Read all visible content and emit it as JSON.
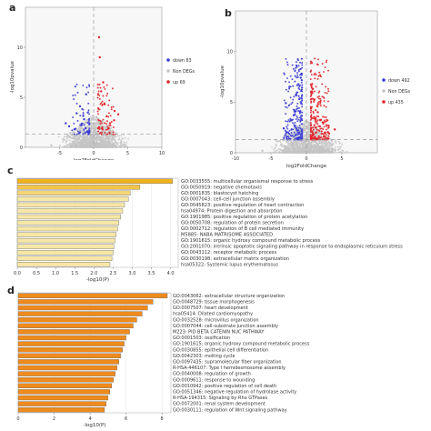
{
  "panel_labels": [
    "a",
    "b",
    "c",
    "d"
  ],
  "colors": {
    "down": "#3b3bd6",
    "non": "#c4c4c4",
    "up": "#e0242a",
    "threshold": "#999999",
    "bar_c_light": "#f6e7a6",
    "bar_c_dark": "#f2b21b",
    "bar_d": "#ef8a1c",
    "bar_outline": "#6b6b6b",
    "panel_bg": "#f7f7f7"
  },
  "chart_data": [
    {
      "id": "a",
      "type": "scatter",
      "title": "",
      "xlabel": "log2FoldChange",
      "ylabel": "-log10pvalue",
      "xlim": [
        -10,
        10
      ],
      "ylim": [
        0,
        14
      ],
      "xticks": [
        -5,
        0,
        5,
        10
      ],
      "yticks": [
        0,
        5,
        10
      ],
      "threshold_y": 1.3,
      "fc_cutoff": 0.6,
      "legend_position": "right",
      "series": [
        {
          "name": "down 83",
          "color": "#3b3bd6",
          "x": [
            -2.5,
            -1.8,
            -1.2,
            -3.6,
            -2.0,
            -1.4,
            -0.9,
            -2.8,
            -1.1,
            -4.1
          ],
          "y": [
            3.4,
            2.2,
            1.9,
            2.1,
            4.1,
            2.8,
            1.6,
            1.8,
            5.3,
            2.4
          ]
        },
        {
          "name": "Non DEGs",
          "color": "#c4c4c4",
          "x": [
            -0.5,
            0.3,
            -1.5,
            1.2,
            -3.0,
            2.8,
            -0.2,
            0.6,
            4.5,
            -6.2
          ],
          "y": [
            0.5,
            0.9,
            0.3,
            0.7,
            0.4,
            0.2,
            1.1,
            0.4,
            0.3,
            0.2
          ]
        },
        {
          "name": "up 69",
          "color": "#e0242a",
          "x": [
            0.8,
            1.3,
            1.9,
            2.4,
            1.1,
            3.0,
            0.9,
            1.6,
            2.2,
            3.6,
            0.8,
            1.4
          ],
          "y": [
            2.0,
            1.8,
            3.1,
            2.4,
            5.6,
            2.7,
            9.0,
            4.3,
            1.9,
            3.3,
            11.0,
            6.5
          ]
        }
      ]
    },
    {
      "id": "b",
      "type": "scatter",
      "title": "",
      "xlabel": "log2FoldChange",
      "ylabel": "-log10pvalue",
      "xlim": [
        -10,
        10
      ],
      "ylim": [
        0,
        14
      ],
      "xticks": [
        -10,
        -5,
        0,
        5
      ],
      "yticks": [
        0,
        5,
        10
      ],
      "threshold_y": 1.3,
      "fc_cutoff": 0.6,
      "legend_position": "right",
      "series": [
        {
          "name": "down 492",
          "color": "#3b3bd6",
          "x": [
            -2.1,
            -1.5,
            -1.0,
            -3.2,
            -2.4,
            -1.2,
            -0.8,
            -1.8,
            -2.9,
            -1.4
          ],
          "y": [
            3.2,
            4.1,
            5.3,
            2.4,
            6.5,
            2.0,
            7.4,
            3.7,
            4.9,
            8.6
          ]
        },
        {
          "name": "Non DEGs",
          "color": "#c4c4c4",
          "x": [
            -0.5,
            0.3,
            -1.5,
            1.2,
            -3.0,
            2.8,
            -0.2,
            0.6,
            4.5,
            -6.2
          ],
          "y": [
            0.5,
            0.9,
            0.3,
            0.7,
            0.4,
            0.2,
            1.1,
            0.4,
            0.3,
            0.2
          ]
        },
        {
          "name": "up 435",
          "color": "#e0242a",
          "x": [
            0.8,
            1.3,
            1.9,
            2.6,
            1.1,
            3.2,
            0.9,
            1.6,
            2.3,
            4.0
          ],
          "y": [
            2.1,
            3.4,
            2.6,
            2.0,
            5.2,
            1.9,
            6.3,
            4.0,
            3.0,
            2.3
          ]
        }
      ]
    },
    {
      "id": "c",
      "type": "bar",
      "orientation": "horizontal",
      "xlabel": "-log10(P)",
      "xlim": [
        0,
        4.2
      ],
      "xticks": [
        0,
        0.5,
        1,
        1.5,
        2,
        2.5,
        3,
        3.5,
        4
      ],
      "xtick_labels": [
        "0.0",
        "0.5",
        "1.0",
        "1.5",
        "2.0",
        "2.5",
        "3.0",
        "3.5",
        "4.0"
      ],
      "categories": [
        "GO:0033555: multicellular organismal response to stress",
        "GO:0050919: negative chemotaxis",
        "GO:0001835: blastocyst hatching",
        "GO:0007043: cell-cell junction assembly",
        "GO:0045823: positive regulation of heart contraction",
        "hsa04974: Protein digestion and absorption",
        "GO:1901985: positive regulation of protein acetylation",
        "GO:0050708: regulation of protein secretion",
        "GO:0002712: regulation of B cell mediated immunity",
        "M5885: NABA MATRISOME ASSOCIATED",
        "GO:1901615: organic hydroxy compound metabolic process",
        "GO:2001070: intrinsic apoptotic signaling pathway in response to endoplasmic reticulum stress",
        "GO:0043112: receptor metabolic process",
        "GO:0030198: extracellular matrix organization",
        "hsa05322: Systemic lupus erythematosus"
      ],
      "values": [
        4.05,
        3.2,
        2.95,
        2.9,
        2.8,
        2.75,
        2.7,
        2.65,
        2.62,
        2.58,
        2.55,
        2.52,
        2.5,
        2.47,
        2.42
      ]
    },
    {
      "id": "d",
      "type": "bar",
      "orientation": "horizontal",
      "xlabel": "-log10(P)",
      "xlim": [
        0,
        8.5
      ],
      "xticks": [
        0,
        2,
        4,
        6,
        8
      ],
      "xtick_labels": [
        "0",
        "2",
        "4",
        "6",
        "8"
      ],
      "categories": [
        "GO:0043062: extracellular structure organization",
        "GO:0048729: tissue morphogenesis",
        "GO:0007507: heart development",
        "hsa05414: Dilated cardiomyopathy",
        "GO:0032528: microvillus organization",
        "GO:0007044: cell-substrate junction assembly",
        "M223: PID BETA CATENIN NUC PATHWAY",
        "GO:0001503: ossification",
        "GO:1901615: organic hydroxy compound metabolic process",
        "GO:0030855: epithelial cell differentiation",
        "GO:0042303: molting cycle",
        "GO:0097435: supramolecular fiber organization",
        "R-HSA-446107: Type I hemidesmosome assembly",
        "GO:0040008: regulation of growth",
        "GO:0009611: response to wounding",
        "GO:0010942: positive regulation of cell death",
        "GO:0051346: negative regulation of hydrolase activity",
        "R-HSA-194315: Signaling by Rho GTPases",
        "GO:0072001: renal system development",
        "GO:0030111: regulation of Wnt signaling pathway"
      ],
      "values": [
        8.3,
        7.5,
        7.2,
        6.9,
        6.6,
        6.4,
        6.2,
        6.0,
        5.9,
        5.8,
        5.7,
        5.6,
        5.5,
        5.4,
        5.3,
        5.2,
        5.1,
        5.0,
        4.9,
        4.8
      ]
    }
  ]
}
